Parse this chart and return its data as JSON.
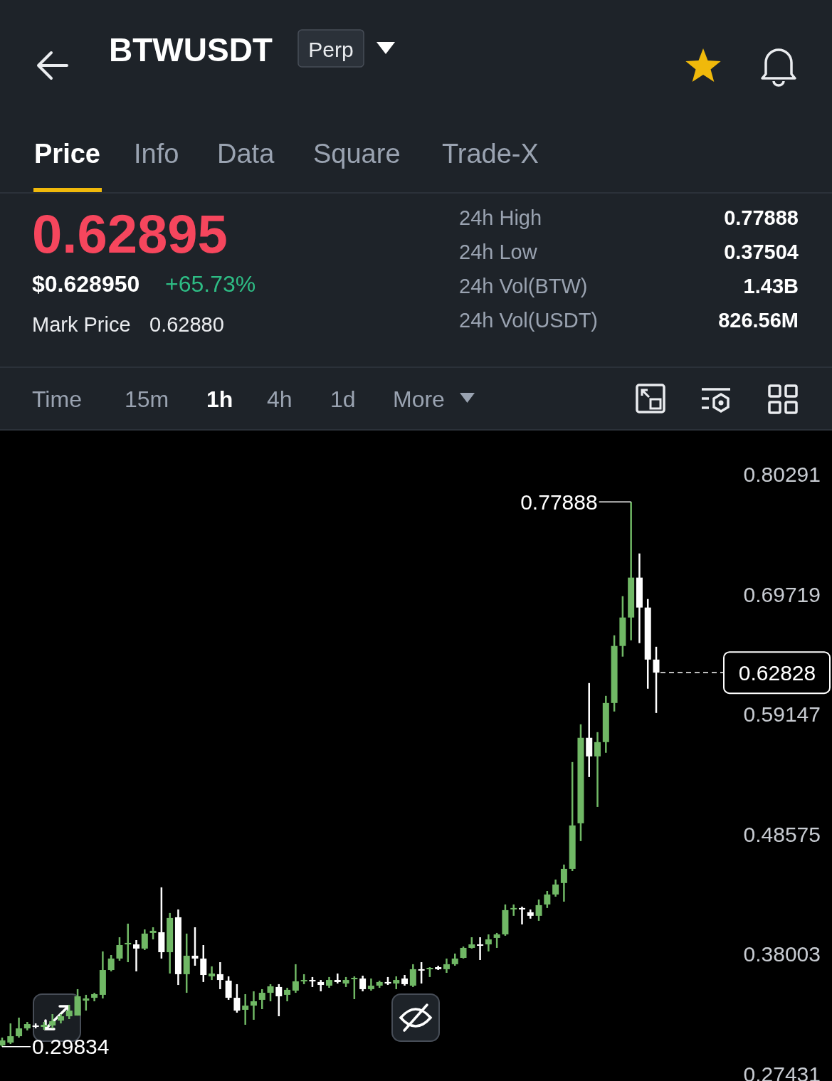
{
  "chart_data": {
    "type": "candlestick",
    "title": "BTWUSDT",
    "annotations": [
      "Perp",
      "Price",
      "Info",
      "Data",
      "Square",
      "Trade-X",
      "0.62895",
      "$0.628950",
      "+65.73%",
      "Mark Price",
      "0.62880",
      "24h High",
      "0.77888",
      "24h Low",
      "0.37504",
      "24h Vol(BTW)",
      "1.43B",
      "24h Vol(USDT)",
      "826.56M",
      "Time",
      "15m",
      "1h",
      "4h",
      "1d",
      "More",
      "0.77888",
      "0.29834"
    ],
    "categories": [
      null,
      null,
      null,
      null,
      null,
      null,
      null,
      null,
      null,
      null,
      null,
      null,
      null,
      null,
      null,
      null,
      null,
      null,
      null,
      null,
      null,
      null,
      null,
      null,
      null,
      null,
      null,
      null,
      null,
      null,
      null,
      null,
      null,
      null,
      null,
      null,
      null,
      null,
      null,
      null,
      null,
      null,
      null,
      null,
      null,
      null,
      null,
      null,
      null,
      null,
      null,
      null,
      null,
      null,
      null,
      null,
      null,
      null,
      null,
      null,
      null,
      null,
      null,
      null,
      null,
      null,
      null,
      null,
      null,
      null,
      null,
      null,
      null,
      null,
      null,
      null,
      null,
      null,
      null
    ],
    "ohlc": [
      [
        0.2995,
        0.3064,
        0.29834,
        0.3039
      ],
      [
        0.302,
        0.3189,
        0.3007,
        0.3076
      ],
      [
        0.3076,
        0.324,
        0.3064,
        0.3145
      ],
      [
        0.3145,
        0.3202,
        0.3127,
        0.3183
      ],
      [
        0.3171,
        0.3189,
        0.3145,
        0.3158
      ],
      [
        0.3158,
        0.3202,
        0.3133,
        0.3177
      ],
      [
        0.3171,
        0.3271,
        0.3145,
        0.3208
      ],
      [
        0.3214,
        0.3271,
        0.3189,
        0.3252
      ],
      [
        0.3252,
        0.3353,
        0.3227,
        0.3302
      ],
      [
        0.3258,
        0.3491,
        0.3258,
        0.3428
      ],
      [
        0.339,
        0.3441,
        0.3302,
        0.3409
      ],
      [
        0.3415,
        0.3459,
        0.3384,
        0.3447
      ],
      [
        0.3441,
        0.3824,
        0.3409,
        0.366
      ],
      [
        0.366,
        0.3792,
        0.3648,
        0.3761
      ],
      [
        0.3761,
        0.3949,
        0.3742,
        0.388
      ],
      [
        0.3886,
        0.4069,
        0.3729,
        0.3899
      ],
      [
        0.3886,
        0.3924,
        0.3648,
        0.3849
      ],
      [
        0.3849,
        0.4018,
        0.3836,
        0.3981
      ],
      [
        0.3987,
        0.4037,
        0.393,
        0.4006
      ],
      [
        0.3993,
        0.4389,
        0.3761,
        0.3817
      ],
      [
        0.3817,
        0.4163,
        0.3629,
        0.4119
      ],
      [
        0.4125,
        0.4194,
        0.3528,
        0.3623
      ],
      [
        0.3623,
        0.3981,
        0.3459,
        0.3786
      ],
      [
        0.3786,
        0.4037,
        0.3698,
        0.3761
      ],
      [
        0.3761,
        0.388,
        0.3554,
        0.3616
      ],
      [
        0.3604,
        0.3692,
        0.3572,
        0.3629
      ],
      [
        0.3623,
        0.3729,
        0.3491,
        0.3572
      ],
      [
        0.3566,
        0.3604,
        0.3397,
        0.3415
      ],
      [
        0.3415,
        0.3535,
        0.3284,
        0.3302
      ],
      [
        0.3309,
        0.3447,
        0.3177,
        0.3346
      ],
      [
        0.3346,
        0.3472,
        0.3221,
        0.3384
      ],
      [
        0.3397,
        0.3491,
        0.3315,
        0.3459
      ],
      [
        0.3459,
        0.3535,
        0.3384,
        0.3516
      ],
      [
        0.351,
        0.3535,
        0.3252,
        0.3428
      ],
      [
        0.3441,
        0.3503,
        0.3384,
        0.3485
      ],
      [
        0.3478,
        0.3711,
        0.3459,
        0.356
      ],
      [
        0.356,
        0.3623,
        0.3535,
        0.3572
      ],
      [
        0.3572,
        0.3598,
        0.351,
        0.356
      ],
      [
        0.3554,
        0.3572,
        0.3472,
        0.3528
      ],
      [
        0.3522,
        0.3598,
        0.3503,
        0.3572
      ],
      [
        0.3572,
        0.3629,
        0.3541,
        0.3554
      ],
      [
        0.3541,
        0.3598,
        0.351,
        0.3572
      ],
      [
        0.3585,
        0.3604,
        0.3403,
        0.3591
      ],
      [
        0.3585,
        0.361,
        0.3472,
        0.3491
      ],
      [
        0.3491,
        0.3585,
        0.3478,
        0.3522
      ],
      [
        0.3522,
        0.3566,
        0.3503,
        0.3554
      ],
      [
        0.3554,
        0.3598,
        0.3528,
        0.3541
      ],
      [
        0.3541,
        0.3604,
        0.3491,
        0.3572
      ],
      [
        0.3585,
        0.3616,
        0.3522,
        0.3535
      ],
      [
        0.3522,
        0.3711,
        0.351,
        0.3667
      ],
      [
        0.3667,
        0.3729,
        0.3541,
        0.366
      ],
      [
        0.3673,
        0.3685,
        0.3598,
        0.3679
      ],
      [
        0.3685,
        0.3698,
        0.366,
        0.3667
      ],
      [
        0.3667,
        0.3761,
        0.3635,
        0.3711
      ],
      [
        0.3711,
        0.3805,
        0.3698,
        0.3761
      ],
      [
        0.3767,
        0.3867,
        0.3761,
        0.3855
      ],
      [
        0.3855,
        0.3949,
        0.3849,
        0.3886
      ],
      [
        0.3886,
        0.3949,
        0.3748,
        0.3874
      ],
      [
        0.3886,
        0.3974,
        0.3824,
        0.393
      ],
      [
        0.3943,
        0.3987,
        0.3855,
        0.3974
      ],
      [
        0.3974,
        0.4238,
        0.3962,
        0.4188
      ],
      [
        0.42,
        0.4238,
        0.4138,
        0.4207
      ],
      [
        0.4207,
        0.4219,
        0.4062,
        0.4194
      ],
      [
        0.4169,
        0.4194,
        0.4113,
        0.4138
      ],
      [
        0.4138,
        0.4282,
        0.4094,
        0.4232
      ],
      [
        0.4238,
        0.4357,
        0.4207,
        0.4326
      ],
      [
        0.4326,
        0.4458,
        0.4307,
        0.4414
      ],
      [
        0.4427,
        0.459,
        0.4263,
        0.4552
      ],
      [
        0.4552,
        0.5494,
        0.4533,
        0.4935
      ],
      [
        0.4954,
        0.5827,
        0.4797,
        0.5708
      ],
      [
        0.5708,
        0.6191,
        0.5362,
        0.5544
      ],
      [
        0.5544,
        0.5758,
        0.5098,
        0.567
      ],
      [
        0.567,
        0.6078,
        0.5576,
        0.6015
      ],
      [
        0.6015,
        0.6612,
        0.594,
        0.6518
      ],
      [
        0.6518,
        0.6957,
        0.6424,
        0.6769
      ],
      [
        0.6769,
        0.77888,
        0.6568,
        0.7121
      ],
      [
        0.7121,
        0.7334,
        0.6543,
        0.6857
      ],
      [
        0.6857,
        0.6932,
        0.6141,
        0.6398
      ],
      [
        0.6398,
        0.6511,
        0.5927,
        0.62828
      ]
    ],
    "colors": [
      "#70b865",
      "#70b865",
      "#70b865",
      "#70b865",
      "#ffffff",
      "#70b865",
      "#70b865",
      "#70b865",
      "#70b865",
      "#70b865",
      "#70b865",
      "#70b865",
      "#70b865",
      "#70b865",
      "#70b865",
      "#70b865",
      "#ffffff",
      "#70b865",
      "#70b865",
      "#ffffff",
      "#70b865",
      "#ffffff",
      "#70b865",
      "#ffffff",
      "#ffffff",
      "#70b865",
      "#ffffff",
      "#ffffff",
      "#ffffff",
      "#70b865",
      "#70b865",
      "#70b865",
      "#70b865",
      "#ffffff",
      "#70b865",
      "#70b865",
      "#70b865",
      "#ffffff",
      "#ffffff",
      "#70b865",
      "#ffffff",
      "#70b865",
      "#70b865",
      "#ffffff",
      "#70b865",
      "#70b865",
      "#ffffff",
      "#70b865",
      "#ffffff",
      "#70b865",
      "#ffffff",
      "#70b865",
      "#ffffff",
      "#70b865",
      "#70b865",
      "#70b865",
      "#70b865",
      "#ffffff",
      "#70b865",
      "#70b865",
      "#70b865",
      "#70b865",
      "#ffffff",
      "#ffffff",
      "#70b865",
      "#70b865",
      "#70b865",
      "#70b865",
      "#70b865",
      "#70b865",
      "#ffffff",
      "#70b865",
      "#70b865",
      "#70b865",
      "#70b865",
      "#70b865",
      "#ffffff",
      "#ffffff",
      "#ffffff"
    ],
    "ylim": [
      0.2681,
      0.8418
    ],
    "yticks": [
      0.80291,
      0.69719,
      0.59147,
      0.48575,
      0.38003,
      0.27431
    ],
    "ref_lines": [
      {
        "axis": "y",
        "value": 0.62828,
        "label": "0.62828",
        "color": "#ffffff",
        "line_style": "dashed"
      }
    ]
  }
}
